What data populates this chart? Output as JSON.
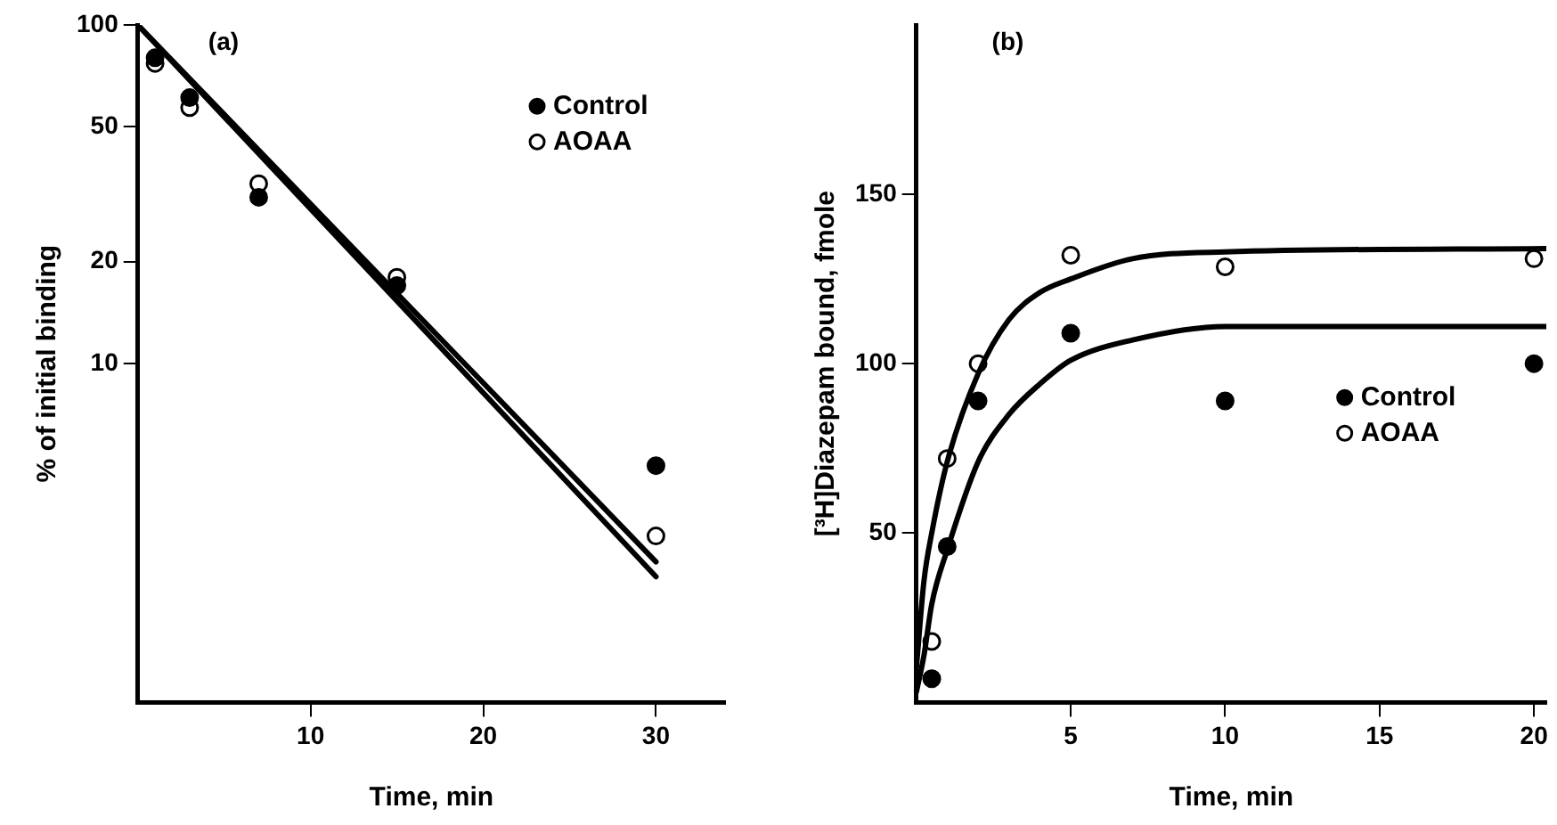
{
  "chart_data": [
    {
      "type": "scatter",
      "xlabel": "Time, min",
      "ylabel": "% of initial binding",
      "annotations": [
        "(a)"
      ],
      "xlim": [
        0,
        34
      ],
      "xticks": [
        10,
        20,
        30
      ],
      "ylim": [
        1,
        100
      ],
      "yticks": [
        10,
        20,
        50,
        100
      ],
      "log": "y",
      "grid": false,
      "legend": "top right",
      "marker": "circle",
      "series": [
        {
          "name": "Control",
          "color": "#000000",
          "x": [
            1,
            3,
            7,
            15,
            30
          ],
          "values": [
            80,
            61,
            31,
            17,
            5
          ]
        },
        {
          "name": "AOAA",
          "color": "#000000",
          "x": [
            1,
            3,
            7,
            15,
            30
          ],
          "values": [
            77,
            57,
            34,
            18,
            3.1
          ]
        },
        {
          "type": "line",
          "color": "#000000",
          "marker": "none",
          "x": [
            0,
            30
          ],
          "values": [
            100,
            2.6
          ]
        },
        {
          "type": "line",
          "color": "#000000",
          "marker": "none",
          "x": [
            0,
            30
          ],
          "values": [
            100,
            2.35
          ]
        }
      ]
    },
    {
      "type": "scatter",
      "xlabel": "Time, min",
      "ylabel": "[³H]Diazepam bound, fmole",
      "annotations": [
        "(b)"
      ],
      "xlim": [
        0,
        20.4
      ],
      "xticks": [
        5,
        10,
        15,
        20
      ],
      "ylim": [
        0,
        200
      ],
      "yticks": [
        50,
        100,
        150
      ],
      "grid": false,
      "legend": "right",
      "marker": "circle",
      "series": [
        {
          "name": "Control",
          "color": "#000000",
          "x": [
            0.5,
            1,
            2,
            5,
            10,
            20
          ],
          "values": [
            7,
            46,
            89,
            109,
            89,
            100
          ]
        },
        {
          "name": "AOAA",
          "color": "#000000",
          "x": [
            0.5,
            1,
            2,
            5,
            10,
            20
          ],
          "values": [
            18,
            72,
            100,
            132,
            128.6,
            131
          ]
        },
        {
          "type": "line",
          "color": "#000000",
          "marker": "none",
          "x": [
            0,
            0.25,
            0.5,
            1,
            2,
            3,
            4,
            5,
            7,
            10,
            20.4
          ],
          "values": [
            10,
            36,
            50,
            71,
            97,
            113,
            121,
            125,
            131,
            133,
            134
          ]
        },
        {
          "type": "line",
          "color": "#000000",
          "marker": "none",
          "x": [
            0,
            0.25,
            0.5,
            1,
            2,
            3,
            4,
            5,
            7,
            10,
            20.4
          ],
          "values": [
            3,
            14,
            29,
            45,
            71,
            85,
            94,
            101,
            107,
            111,
            111
          ]
        }
      ]
    }
  ]
}
